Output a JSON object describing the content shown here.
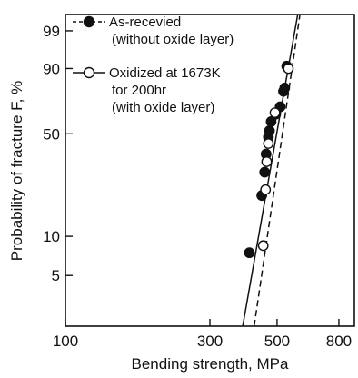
{
  "chart_data": {
    "type": "scatter",
    "title": "",
    "xlabel": "Bending strength,  MPa",
    "ylabel": "Probability of fracture F,  %",
    "x_scale": "log",
    "y_scale": "weibull",
    "xlim": [
      100,
      900
    ],
    "ylim": [
      2,
      99.8
    ],
    "x_ticks": [
      100,
      300,
      500,
      800
    ],
    "x_tick_labels": [
      "100",
      "300",
      "500",
      "800"
    ],
    "y_ticks": [
      5,
      10,
      50,
      90,
      99
    ],
    "y_tick_labels": [
      "5",
      "10",
      "50",
      "90",
      "99"
    ],
    "grid": false,
    "legend_position": "top-left",
    "series": [
      {
        "name": "As-recevied\n(without oxide layer)",
        "marker": "filled-circle",
        "line": "dashed",
        "color": "#111111",
        "points": [
          {
            "x": 405,
            "y": 7.5
          },
          {
            "x": 445,
            "y": 20
          },
          {
            "x": 455,
            "y": 29
          },
          {
            "x": 460,
            "y": 38
          },
          {
            "x": 468,
            "y": 48
          },
          {
            "x": 472,
            "y": 52
          },
          {
            "x": 478,
            "y": 58
          },
          {
            "x": 495,
            "y": 63
          },
          {
            "x": 512,
            "y": 68
          },
          {
            "x": 525,
            "y": 78
          },
          {
            "x": 530,
            "y": 80
          },
          {
            "x": 538,
            "y": 91
          }
        ],
        "fit_line": [
          {
            "x": 420,
            "y": 2
          },
          {
            "x": 595,
            "y": 99.8
          }
        ]
      },
      {
        "name": "Oxidized at 1673K\nfor 200hr\n(with oxide layer)",
        "marker": "open-circle",
        "line": "solid",
        "color": "#111111",
        "points": [
          {
            "x": 450,
            "y": 8.5
          },
          {
            "x": 458,
            "y": 22
          },
          {
            "x": 462,
            "y": 34
          },
          {
            "x": 468,
            "y": 44
          },
          {
            "x": 492,
            "y": 64
          },
          {
            "x": 545,
            "y": 90
          }
        ],
        "fit_line": [
          {
            "x": 385,
            "y": 2
          },
          {
            "x": 585,
            "y": 99.8
          }
        ]
      }
    ]
  }
}
